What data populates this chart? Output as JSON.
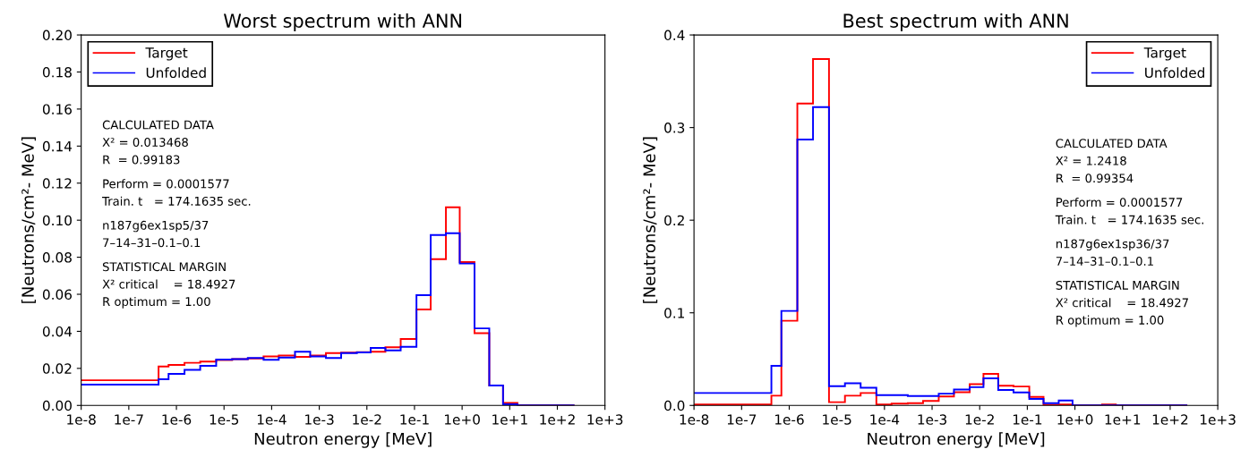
{
  "chart_data": [
    {
      "type": "histogram",
      "title": "Worst spectrum with ANN",
      "xlabel": "Neutron energy [MeV]",
      "ylabel": "[Neutrons/cm²- MeV]",
      "log": "x",
      "legend": "top left",
      "grid": false,
      "bins": [
        1e-08,
        4.22e-07,
        6.84e-07,
        1.48e-06,
        3.16e-06,
        6.84e-06,
        1.48e-05,
        3.16e-05,
        6.76e-05,
        0.000141,
        0.000309,
        0.000646,
        0.00138,
        0.00288,
        0.00617,
        0.012,
        0.0245,
        0.0513,
        0.11,
        0.219,
        0.457,
        0.891,
        1.82,
        3.72,
        7.24,
        14.5,
        229
      ],
      "series": [
        {
          "name": "Target",
          "color": "#ff0000",
          "values": [
            0.0136,
            0.021,
            0.0219,
            0.023,
            0.0237,
            0.0245,
            0.025,
            0.0254,
            0.0264,
            0.0269,
            0.0262,
            0.027,
            0.0283,
            0.0285,
            0.0288,
            0.029,
            0.0314,
            0.0359,
            0.0518,
            0.079,
            0.107,
            0.0774,
            0.039,
            0.0108,
            0.0013,
            0
          ]
        },
        {
          "name": "Unfolded",
          "color": "#0000ff",
          "values": [
            0.0112,
            0.0141,
            0.017,
            0.0192,
            0.0214,
            0.0248,
            0.025,
            0.0256,
            0.0246,
            0.0258,
            0.029,
            0.0264,
            0.0256,
            0.0283,
            0.0286,
            0.031,
            0.0297,
            0.0316,
            0.0595,
            0.092,
            0.093,
            0.0766,
            0.0416,
            0.0108,
            0.0006,
            0
          ]
        }
      ],
      "xlim": [
        1e-08,
        1000
      ],
      "xticks": [
        {
          "value": 1e-08,
          "label": "1e-8"
        },
        {
          "value": 1e-07,
          "label": "1e-7"
        },
        {
          "value": 1e-06,
          "label": "1e-6"
        },
        {
          "value": 1e-05,
          "label": "1e-5"
        },
        {
          "value": 0.0001,
          "label": "1e-4"
        },
        {
          "value": 0.001,
          "label": "1e-3"
        },
        {
          "value": 0.01,
          "label": "1e-2"
        },
        {
          "value": 0.1,
          "label": "1e-1"
        },
        {
          "value": 1,
          "label": "1e+0"
        },
        {
          "value": 10,
          "label": "1e+1"
        },
        {
          "value": 100,
          "label": "1e+2"
        },
        {
          "value": 1000,
          "label": "1e+3"
        }
      ],
      "ylim": [
        0,
        0.2
      ],
      "yticks": [
        {
          "value": 0,
          "label": "0.00"
        },
        {
          "value": 0.02,
          "label": "0.02"
        },
        {
          "value": 0.04,
          "label": "0.04"
        },
        {
          "value": 0.06,
          "label": "0.06"
        },
        {
          "value": 0.08,
          "label": "0.08"
        },
        {
          "value": 0.1,
          "label": "0.10"
        },
        {
          "value": 0.12,
          "label": "0.12"
        },
        {
          "value": 0.14,
          "label": "0.14"
        },
        {
          "value": 0.16,
          "label": "0.16"
        },
        {
          "value": 0.18,
          "label": "0.18"
        },
        {
          "value": 0.2,
          "label": "0.20"
        }
      ],
      "annotations": [
        "CALCULATED DATA",
        "X² = 0.013468",
        "R  = 0.99183",
        "Perform = 0.0001577",
        "Train. t   = 174.1635 sec.",
        "n187g6ex1sp5/37",
        "7–14–31–0.1–0.1",
        "STATISTICAL MARGIN",
        "X² critical    = 18.4927",
        "R optimum = 1.00"
      ]
    },
    {
      "type": "histogram",
      "title": "Best spectrum with ANN",
      "xlabel": "Neutron energy [MeV]",
      "ylabel": "[Neutrons/cm²- MeV]",
      "log": "x",
      "legend": "top right",
      "grid": false,
      "bins": [
        1e-08,
        4.22e-07,
        6.84e-07,
        1.48e-06,
        3.16e-06,
        6.84e-06,
        1.48e-05,
        3.16e-05,
        6.76e-05,
        0.000141,
        0.000309,
        0.000646,
        0.00138,
        0.00288,
        0.00617,
        0.012,
        0.0245,
        0.0513,
        0.11,
        0.219,
        0.457,
        0.891,
        1.82,
        3.72,
        7.24,
        14.5,
        229
      ],
      "series": [
        {
          "name": "Target",
          "color": "#ff0000",
          "values": [
            0.001,
            0.0105,
            0.0914,
            0.326,
            0.374,
            0.0035,
            0.0105,
            0.0134,
            0.001,
            0.002,
            0.0025,
            0.0048,
            0.0096,
            0.0143,
            0.0229,
            0.034,
            0.0213,
            0.0204,
            0.0092,
            0.0006,
            0.001,
            0,
            0,
            0.001,
            0,
            0
          ]
        },
        {
          "name": "Unfolded",
          "color": "#0000ff",
          "values": [
            0.0134,
            0.0427,
            0.102,
            0.287,
            0.322,
            0.0207,
            0.0239,
            0.0191,
            0.0111,
            0.0111,
            0.0102,
            0.0102,
            0.0127,
            0.0172,
            0.0197,
            0.0293,
            0.0166,
            0.014,
            0.007,
            0.0025,
            0.0054,
            0,
            0,
            0,
            0,
            0
          ]
        }
      ],
      "xlim": [
        1e-08,
        1000
      ],
      "xticks": [
        {
          "value": 1e-08,
          "label": "1e-8"
        },
        {
          "value": 1e-07,
          "label": "1e-7"
        },
        {
          "value": 1e-06,
          "label": "1e-6"
        },
        {
          "value": 1e-05,
          "label": "1e-5"
        },
        {
          "value": 0.0001,
          "label": "1e-4"
        },
        {
          "value": 0.001,
          "label": "1e-3"
        },
        {
          "value": 0.01,
          "label": "1e-2"
        },
        {
          "value": 0.1,
          "label": "1e-1"
        },
        {
          "value": 1,
          "label": "1e+0"
        },
        {
          "value": 10,
          "label": "1e+1"
        },
        {
          "value": 100,
          "label": "1e+2"
        },
        {
          "value": 1000,
          "label": "1e+3"
        }
      ],
      "ylim": [
        0,
        0.4
      ],
      "yticks": [
        {
          "value": 0,
          "label": "0.0"
        },
        {
          "value": 0.1,
          "label": "0.1"
        },
        {
          "value": 0.2,
          "label": "0.2"
        },
        {
          "value": 0.3,
          "label": "0.3"
        },
        {
          "value": 0.4,
          "label": "0.4"
        }
      ],
      "annotations": [
        "CALCULATED DATA",
        "X² = 1.2418",
        "R  = 0.99354",
        "Perform = 0.0001577",
        "Train. t   = 174.1635 sec.",
        "n187g6ex1sp36/37",
        "7–14–31–0.1–0.1",
        "STATISTICAL MARGIN",
        "X² critical    = 18.4927",
        "R optimum = 1.00"
      ]
    }
  ]
}
